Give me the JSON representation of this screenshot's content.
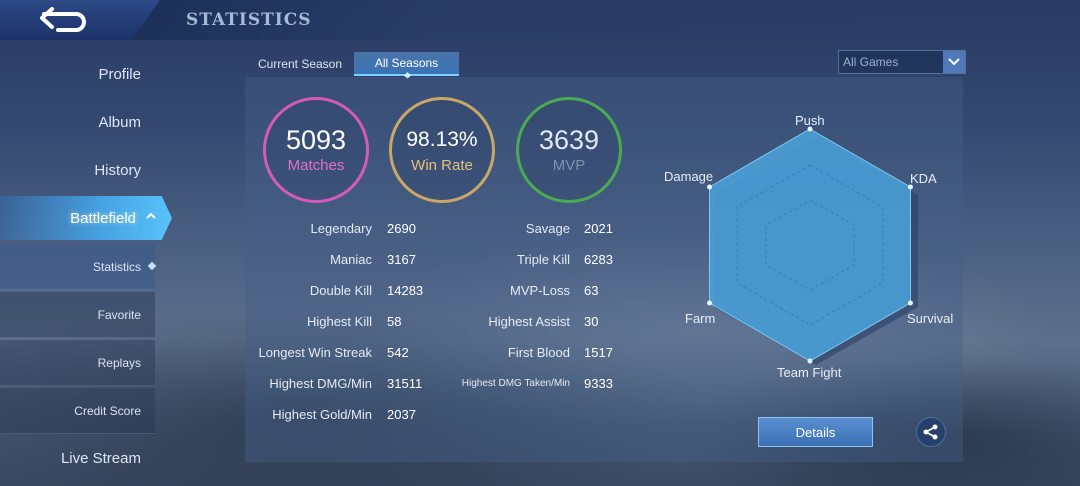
{
  "header": {
    "title": "STATISTICS",
    "back_icon": "back-arrow-icon"
  },
  "sidebar": {
    "items": [
      {
        "label": "Profile"
      },
      {
        "label": "Album"
      },
      {
        "label": "History"
      },
      {
        "label": "Battlefield"
      },
      {
        "label": "Live Stream"
      }
    ],
    "sub_items": [
      {
        "label": "Statistics"
      },
      {
        "label": "Favorite"
      },
      {
        "label": "Replays"
      },
      {
        "label": "Credit Score"
      }
    ]
  },
  "tabs": [
    {
      "label": "Current Season"
    },
    {
      "label": "All Seasons"
    }
  ],
  "filter": {
    "selected": "All Games"
  },
  "summary": {
    "matches": {
      "value": "5093",
      "label": "Matches",
      "color": "#d45bb8"
    },
    "win_rate": {
      "value": "98.13%",
      "label": "Win Rate",
      "color": "#c9a867"
    },
    "mvp": {
      "value": "3639",
      "label": "MVP",
      "color": "#4caa52"
    }
  },
  "stats_left": [
    {
      "label": "Legendary",
      "value": "2690"
    },
    {
      "label": "Maniac",
      "value": "3167"
    },
    {
      "label": "Double Kill",
      "value": "14283"
    },
    {
      "label": "Highest Kill",
      "value": "58"
    },
    {
      "label": "Longest Win Streak",
      "value": "542"
    },
    {
      "label": "Highest DMG/Min",
      "value": "31511"
    },
    {
      "label": "Highest Gold/Min",
      "value": "2037"
    }
  ],
  "stats_right": [
    {
      "label": "Savage",
      "value": "2021"
    },
    {
      "label": "Triple Kill",
      "value": "6283"
    },
    {
      "label": "MVP-Loss",
      "value": "63"
    },
    {
      "label": "Highest Assist",
      "value": "30"
    },
    {
      "label": "First Blood",
      "value": "1517"
    },
    {
      "label": "Highest DMG Taken/Min",
      "value": "9333"
    }
  ],
  "radar": {
    "axes": [
      "Push",
      "KDA",
      "Survival",
      "Team Fight",
      "Farm",
      "Damage"
    ],
    "levels": [
      1,
      1,
      1,
      1,
      1,
      1
    ],
    "fill_color": "#4aa3dc"
  },
  "actions": {
    "details_label": "Details",
    "share_icon": "share-icon"
  }
}
